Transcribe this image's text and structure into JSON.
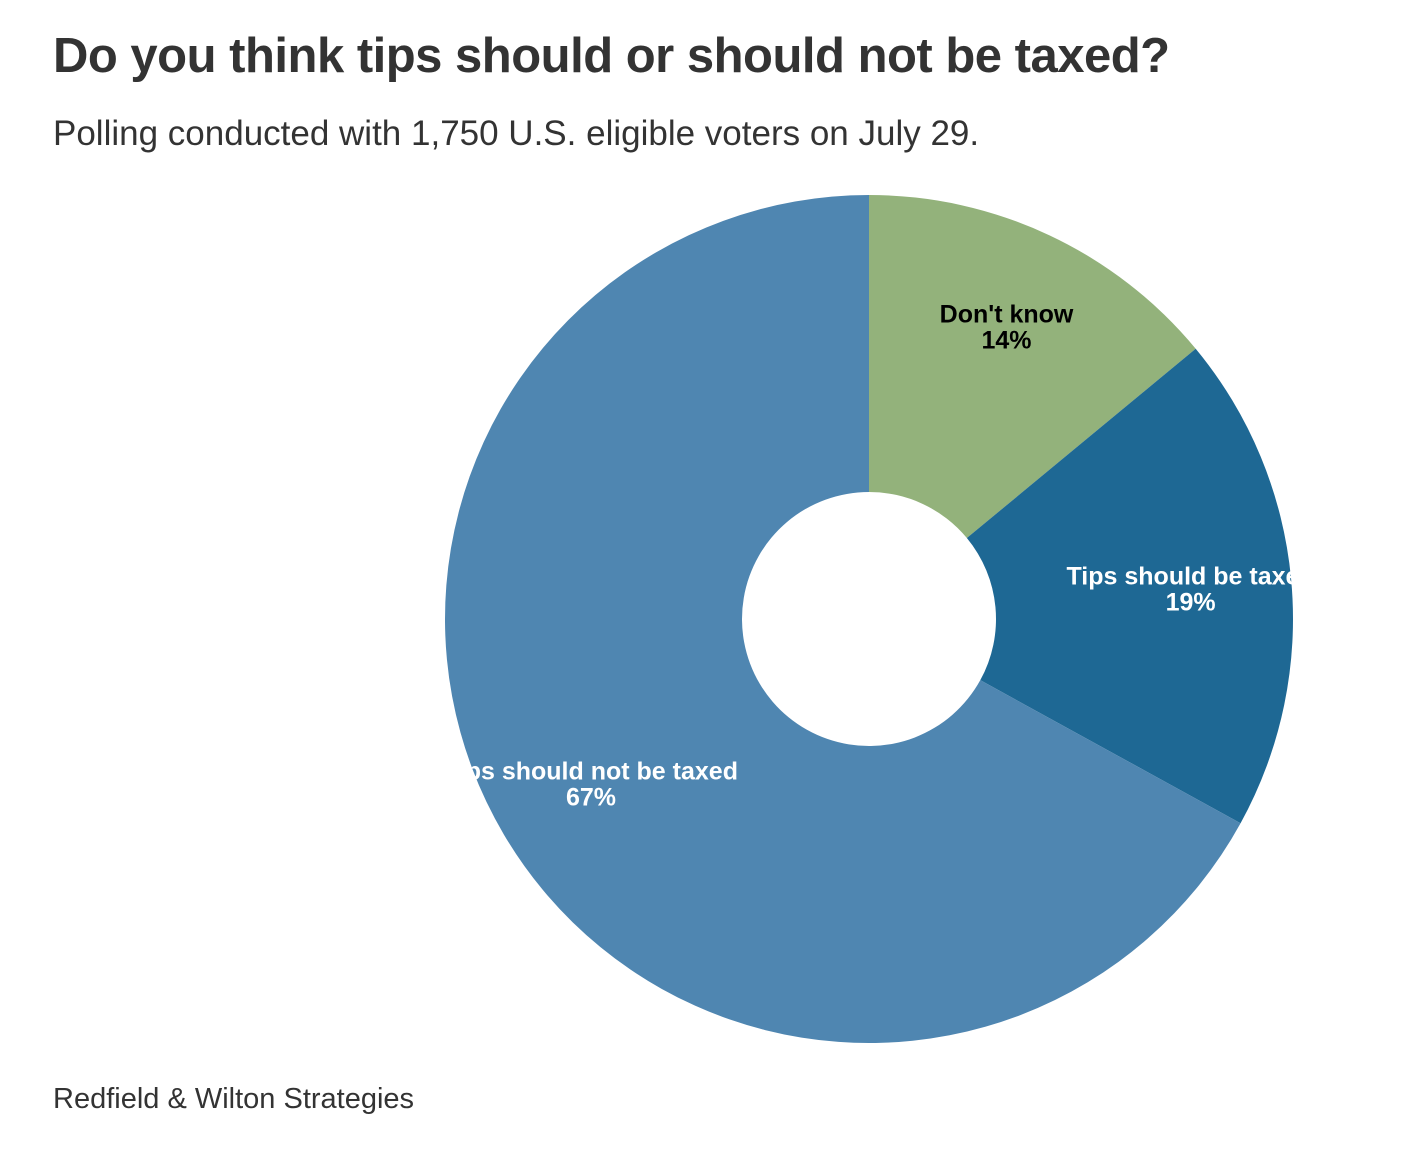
{
  "header": {
    "title": "Do you think tips should or should not be taxed?",
    "subtitle": "Polling conducted with 1,750 U.S. eligible voters on July 29."
  },
  "footer": {
    "source": "Redfield & Wilton Strategies"
  },
  "chart_data": {
    "type": "pie",
    "variant": "donut",
    "title": "Do you think tips should or should not be taxed?",
    "subtitle": "Polling conducted with 1,750 U.S. eligible voters on July 29.",
    "slices": [
      {
        "label": "Don't know",
        "value": 14,
        "value_label": "14%",
        "color": "#93b27b",
        "label_color": "#000000"
      },
      {
        "label": "Tips should be taxed",
        "value": 19,
        "value_label": "19%",
        "color": "#1e6894",
        "label_color": "#ffffff"
      },
      {
        "label": "Tips should not be taxed",
        "value": 67,
        "value_label": "67%",
        "color": "#4f86b1",
        "label_color": "#ffffff"
      }
    ],
    "start": "top",
    "direction": "clockwise",
    "source": "Redfield & Wilton Strategies"
  }
}
